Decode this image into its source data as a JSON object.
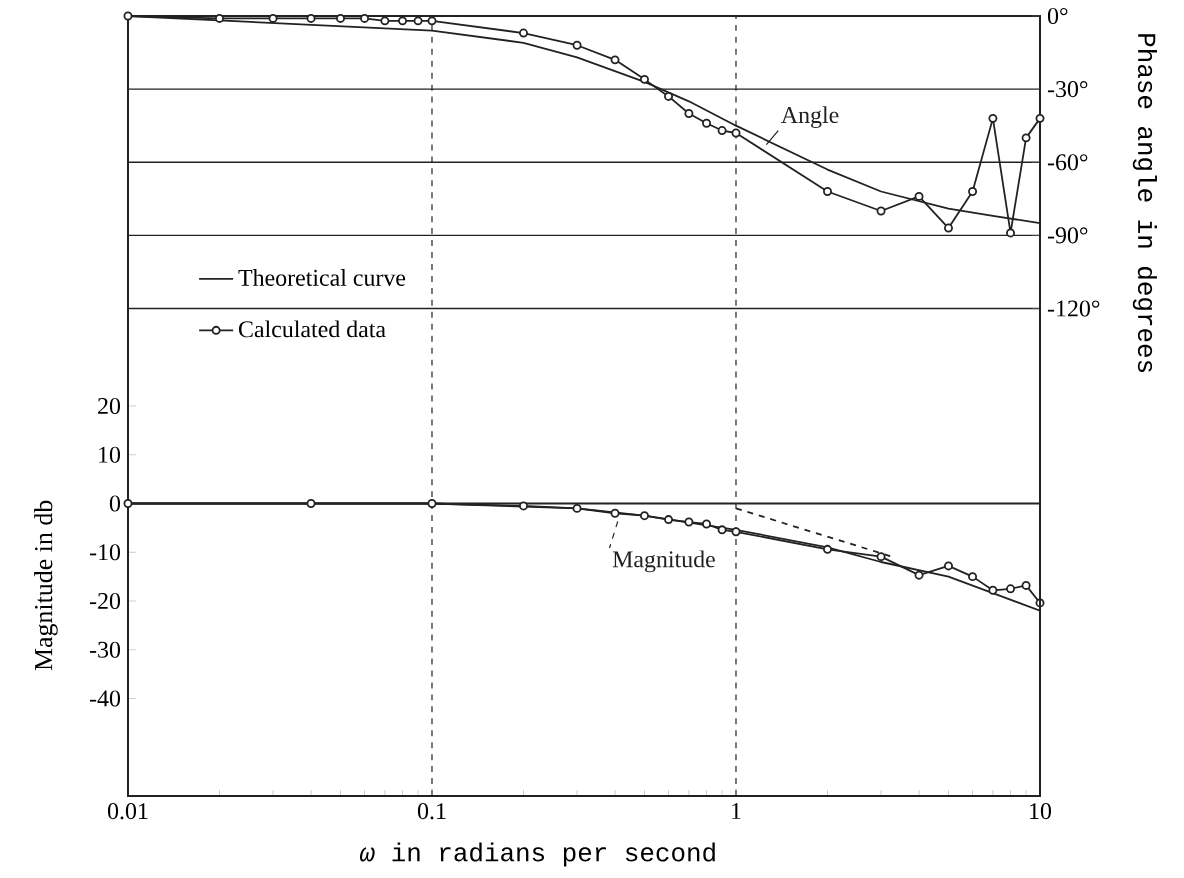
{
  "chart_data": {
    "type": "line",
    "xlabel": "*ω* in radians per second",
    "ylabel": "Magnitude in db",
    "y2label": "Phase angle in degrees",
    "log": "x",
    "xlim": [
      0.01,
      10
    ],
    "xticks": [
      0.01,
      0.1,
      1,
      10
    ],
    "ylim": [
      -60,
      100
    ],
    "yticks": [
      -40,
      -30,
      -20,
      -10,
      0,
      10,
      20
    ],
    "y2lim": [
      -320,
      0
    ],
    "y2ticks": [
      {
        "value": -120,
        "label": "-120°"
      },
      {
        "value": -90,
        "label": "-90°"
      },
      {
        "value": -60,
        "label": "-60°"
      },
      {
        "value": -30,
        "label": "-30°"
      },
      {
        "value": 0,
        "label": "0°"
      }
    ],
    "grid": true,
    "legend": "left",
    "ref_lines": [
      {
        "axis": "y",
        "value": 0,
        "color": "#222222"
      }
    ],
    "annotations": [
      "Angle",
      "Magnitude"
    ],
    "series": [
      {
        "name": "Theoretical curve",
        "axis": "y2",
        "color": "#222222",
        "x": [
          0.01,
          0.1,
          0.2,
          0.3,
          0.5,
          0.7,
          1,
          2,
          3,
          5,
          7,
          10
        ],
        "values": [
          0,
          -6,
          -11,
          -17,
          -27,
          -35,
          -45,
          -63,
          -72,
          -79,
          -82,
          -85
        ]
      },
      {
        "name": "Calculated data",
        "axis": "y2",
        "color": "#222222",
        "marker": "circle",
        "x": [
          0.01,
          0.02,
          0.03,
          0.04,
          0.05,
          0.06,
          0.07,
          0.08,
          0.09,
          0.1,
          0.2,
          0.3,
          0.4,
          0.5,
          0.6,
          0.7,
          0.8,
          0.9,
          1,
          2,
          3,
          4,
          5,
          6,
          7,
          8,
          9,
          10
        ],
        "values": [
          0,
          -1,
          -1,
          -1,
          -1,
          -1,
          -2,
          -2,
          -2,
          -2,
          -7,
          -12,
          -18,
          -26,
          -33,
          -40,
          -44,
          -47,
          -48,
          -72,
          -80,
          -74,
          -87,
          -72,
          -42,
          -89,
          -50,
          -42
        ]
      },
      {
        "color": "#222222",
        "x": [
          0.01,
          0.1,
          0.3,
          0.5,
          1,
          2,
          3,
          5,
          10
        ],
        "values": [
          0,
          0,
          -1,
          -2.5,
          -5.4,
          -9,
          -12,
          -15,
          -22
        ]
      },
      {
        "color": "#222222",
        "marker": "circle",
        "x": [
          0.01,
          0.04,
          0.1,
          0.2,
          0.3,
          0.4,
          0.5,
          0.6,
          0.7,
          0.8,
          0.9,
          1,
          2,
          3,
          4,
          5,
          6,
          7,
          8,
          9,
          10
        ],
        "values": [
          0,
          0,
          0,
          -0.5,
          -1,
          -2,
          -2.5,
          -3.3,
          -3.8,
          -4.2,
          -5.4,
          -5.8,
          -9.4,
          -10.9,
          -14.7,
          -12.8,
          -15,
          -17.8,
          -17.5,
          -16.8,
          -20.4
        ]
      },
      {
        "color": "#222222",
        "line_style": "dashed",
        "x": [
          1,
          3.3
        ],
        "values": [
          -1,
          -11
        ]
      }
    ]
  }
}
